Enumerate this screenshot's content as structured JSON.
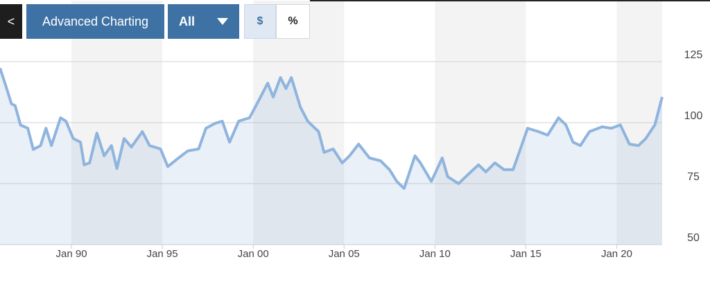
{
  "toolbar": {
    "back": "<",
    "advanced": "Advanced Charting",
    "range": "All",
    "dollar": "$",
    "percent": "%"
  },
  "chart_data": {
    "type": "area",
    "x": [
      1986.07,
      1986.4,
      1986.7,
      1986.9,
      1987.2,
      1987.6,
      1987.9,
      1988.3,
      1988.6,
      1988.9,
      1989.4,
      1989.7,
      1990.1,
      1990.5,
      1990.7,
      1991.0,
      1991.4,
      1991.8,
      1992.2,
      1992.5,
      1992.9,
      1993.3,
      1993.9,
      1994.3,
      1994.9,
      1995.3,
      1995.8,
      1996.4,
      1997.0,
      1997.4,
      1997.9,
      1998.3,
      1998.7,
      1999.2,
      1999.8,
      2000.3,
      2000.8,
      2001.1,
      2001.5,
      2001.8,
      2002.1,
      2002.6,
      2003.0,
      2003.6,
      2003.9,
      2004.4,
      2004.9,
      2005.3,
      2005.8,
      2006.4,
      2007.0,
      2007.5,
      2007.9,
      2008.3,
      2008.9,
      2009.2,
      2009.8,
      2010.4,
      2010.7,
      2011.3,
      2011.9,
      2012.4,
      2012.8,
      2013.3,
      2013.8,
      2014.3,
      2014.7,
      2015.1,
      2015.7,
      2016.2,
      2016.8,
      2017.2,
      2017.6,
      2018.0,
      2018.5,
      2019.2,
      2019.7,
      2020.2,
      2020.7,
      2021.2,
      2021.6,
      2022.1,
      2022.5
    ],
    "values": [
      122.4,
      114.8,
      107.7,
      107,
      99,
      97.7,
      89,
      90.6,
      97.7,
      90.6,
      102,
      100.6,
      93.5,
      92,
      82.7,
      83.5,
      95.7,
      86.4,
      90.6,
      81.2,
      93.5,
      90,
      96.3,
      90.6,
      89.2,
      82,
      85,
      88.4,
      89.2,
      97.7,
      99.7,
      100.6,
      92,
      100.6,
      102,
      109,
      116.2,
      110.5,
      118.5,
      114,
      118.5,
      106.3,
      100.6,
      96.3,
      87.8,
      89.2,
      83.5,
      86.4,
      91.2,
      85.5,
      84.4,
      80.7,
      75.9,
      73,
      86.4,
      83.5,
      75.9,
      85.5,
      77.8,
      75,
      79.3,
      82.7,
      79.8,
      83.5,
      80.7,
      80.7,
      89.2,
      97.7,
      96.3,
      94.9,
      102,
      99.1,
      92,
      90.6,
      96.3,
      98.3,
      97.7,
      99.1,
      91.2,
      90.6,
      93.5,
      99.1,
      110.5
    ],
    "color": "#8fb4de",
    "xlim": [
      1986.07,
      2022.5
    ],
    "xticks": [
      {
        "value": 1990,
        "label": "Jan 90"
      },
      {
        "value": 1995,
        "label": "Jan 95"
      },
      {
        "value": 2000,
        "label": "Jan 00"
      },
      {
        "value": 2005,
        "label": "Jan 05"
      },
      {
        "value": 2010,
        "label": "Jan 10"
      },
      {
        "value": 2015,
        "label": "Jan 15"
      },
      {
        "value": 2020,
        "label": "Jan 20"
      }
    ],
    "ylim": [
      50,
      150
    ],
    "yticks": [
      50,
      75,
      100,
      125
    ],
    "grid": true
  }
}
